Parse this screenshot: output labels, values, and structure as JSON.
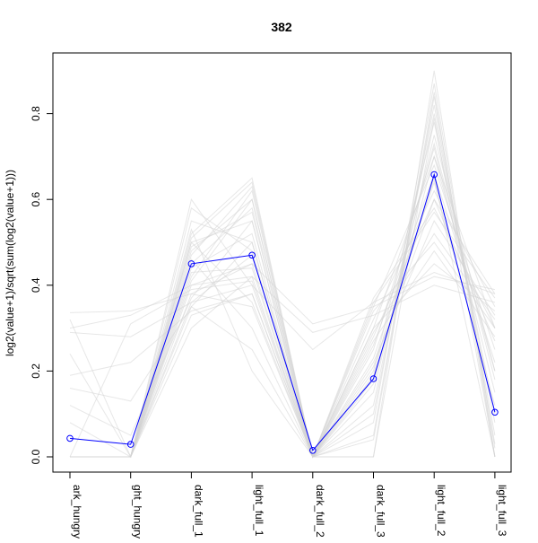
{
  "chart_data": {
    "type": "line",
    "title": "382",
    "xlabel": "",
    "ylabel": "log2(value+1)/sqrt(sum(log2(value+1)))",
    "categories": [
      "dark_hungry",
      "light_hungry",
      "dark_full_1",
      "light_full_1",
      "dark_full_2",
      "dark_full_3",
      "light_full_2",
      "light_full_3"
    ],
    "category_labels_shown": [
      "ark_hungry",
      "ght_hungry",
      "dark_full_1",
      "light_full_1",
      "dark_full_2",
      "dark_full_3",
      "light_full_2",
      "light_full_3"
    ],
    "ylim": [
      0,
      0.92
    ],
    "yticks": [
      0.0,
      0.2,
      0.4,
      0.6,
      0.8
    ],
    "ytick_labels": [
      "0.0",
      "0.2",
      "0.4",
      "0.6",
      "0.8"
    ],
    "grid": false,
    "legend": "none",
    "highlight_series": {
      "values": [
        0.043,
        0.029,
        0.45,
        0.47,
        0.015,
        0.182,
        0.658,
        0.104
      ],
      "color": "#0000ff"
    },
    "background_series_color": "#d3d3d3",
    "background_series": [
      [
        0.0,
        0.0,
        0.47,
        0.63,
        0.0,
        0.0,
        0.9,
        0.0
      ],
      [
        0.0,
        0.0,
        0.52,
        0.65,
        0.0,
        0.05,
        0.85,
        0.0
      ],
      [
        0.0,
        0.0,
        0.48,
        0.6,
        0.0,
        0.1,
        0.82,
        0.05
      ],
      [
        0.0,
        0.0,
        0.45,
        0.58,
        0.0,
        0.2,
        0.78,
        0.1
      ],
      [
        0.0,
        0.0,
        0.5,
        0.55,
        0.0,
        0.15,
        0.75,
        0.2
      ],
      [
        0.0,
        0.0,
        0.42,
        0.62,
        0.0,
        0.25,
        0.72,
        0.15
      ],
      [
        0.0,
        0.0,
        0.55,
        0.5,
        0.0,
        0.3,
        0.7,
        0.3
      ],
      [
        0.0,
        0.0,
        0.4,
        0.45,
        0.0,
        0.35,
        0.68,
        0.25
      ],
      [
        0.0,
        0.0,
        0.6,
        0.4,
        0.0,
        0.18,
        0.65,
        0.0
      ],
      [
        0.0,
        0.0,
        0.38,
        0.35,
        0.0,
        0.32,
        0.62,
        0.35
      ],
      [
        0.0,
        0.0,
        0.46,
        0.3,
        0.0,
        0.28,
        0.6,
        0.38
      ],
      [
        0.0,
        0.0,
        0.35,
        0.25,
        0.0,
        0.37,
        0.58,
        0.3
      ],
      [
        0.0,
        0.0,
        0.53,
        0.2,
        0.0,
        0.22,
        0.55,
        0.33
      ],
      [
        0.0,
        0.0,
        0.44,
        0.52,
        0.0,
        0.12,
        0.8,
        0.08
      ],
      [
        0.0,
        0.0,
        0.58,
        0.48,
        0.0,
        0.08,
        0.87,
        0.02
      ],
      [
        0.0,
        0.0,
        0.3,
        0.42,
        0.0,
        0.36,
        0.57,
        0.37
      ],
      [
        0.0,
        0.0,
        0.41,
        0.6,
        0.0,
        0.26,
        0.66,
        0.22
      ],
      [
        0.0,
        0.0,
        0.49,
        0.57,
        0.0,
        0.04,
        0.84,
        0.03
      ],
      [
        0.0,
        0.0,
        0.36,
        0.47,
        0.0,
        0.19,
        0.73,
        0.18
      ],
      [
        0.0,
        0.0,
        0.51,
        0.64,
        0.0,
        0.0,
        0.79,
        0.0
      ],
      [
        0.336,
        0.34,
        0.38,
        0.45,
        0.31,
        0.35,
        0.42,
        0.39
      ],
      [
        0.3,
        0.33,
        0.4,
        0.42,
        0.29,
        0.33,
        0.4,
        0.36
      ],
      [
        0.29,
        0.28,
        0.36,
        0.4,
        0.25,
        0.36,
        0.43,
        0.38
      ],
      [
        0.24,
        0.0,
        0.33,
        0.38,
        0.0,
        0.3,
        0.45,
        0.34
      ],
      [
        0.19,
        0.22,
        0.34,
        0.38,
        0.0,
        0.34,
        0.5,
        0.3
      ],
      [
        0.16,
        0.13,
        0.35,
        0.5,
        0.0,
        0.21,
        0.6,
        0.27
      ],
      [
        0.12,
        0.05,
        0.37,
        0.55,
        0.0,
        0.17,
        0.7,
        0.2
      ],
      [
        0.08,
        0.0,
        0.43,
        0.44,
        0.0,
        0.23,
        0.64,
        0.12
      ],
      [
        0.32,
        0.0,
        0.5,
        0.36,
        0.0,
        0.29,
        0.52,
        0.32
      ],
      [
        0.0,
        0.31,
        0.39,
        0.41,
        0.0,
        0.27,
        0.48,
        0.28
      ]
    ]
  }
}
